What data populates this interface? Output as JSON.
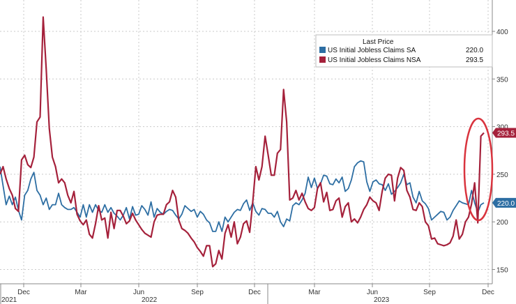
{
  "chart_data": {
    "type": "line",
    "legend": {
      "header": "Last Price",
      "placement": "top-right"
    },
    "y_ticks": [
      150,
      200,
      250,
      300,
      350,
      400
    ],
    "ylim": [
      135,
      430
    ],
    "x_tick_labels": [
      "Dec",
      "Mar",
      "Jun",
      "Sep",
      "Dec",
      "Mar",
      "Jun",
      "Sep",
      "Dec"
    ],
    "year_labels": [
      "2021",
      "2022",
      "2023"
    ],
    "grid": true,
    "colors": {
      "sa": "#2d6ea3",
      "nsa": "#a5213b",
      "highlight_ellipse": "#d9343e"
    },
    "series": [
      {
        "key": "sa",
        "name": "US Initial Jobless Claims SA",
        "last_price": "220.0",
        "values": [
          258,
          238,
          218,
          227,
          218,
          226,
          212,
          202,
          228,
          233,
          245,
          252,
          233,
          228,
          218,
          225,
          213,
          218,
          218,
          230,
          218,
          215,
          213,
          213,
          215,
          210,
          205,
          218,
          205,
          218,
          210,
          218,
          212,
          210,
          218,
          210,
          215,
          209,
          206,
          202,
          207,
          215,
          203,
          216,
          207,
          208,
          217,
          213,
          207,
          221,
          205,
          214,
          210,
          208,
          211,
          213,
          212,
          207,
          203,
          208,
          217,
          214,
          211,
          213,
          205,
          211,
          208,
          202,
          199,
          190,
          190,
          200,
          190,
          205,
          200,
          205,
          210,
          213,
          212,
          219,
          223,
          212,
          220,
          211,
          207,
          214,
          213,
          209,
          209,
          205,
          211,
          200,
          195,
          203,
          201,
          217,
          220,
          218,
          223,
          230,
          247,
          236,
          246,
          235,
          240,
          249,
          248,
          240,
          239,
          245,
          241,
          247,
          232,
          235,
          244,
          258,
          262,
          264,
          263,
          242,
          232,
          242,
          244,
          240,
          239,
          233,
          240,
          229,
          232,
          236,
          241,
          250,
          239,
          241,
          226,
          220,
          232,
          222,
          219,
          214,
          202,
          205,
          208,
          211,
          210,
          202,
          205,
          212,
          217,
          222,
          220,
          219,
          218,
          233,
          220,
          210,
          218,
          220
        ]
      },
      {
        "key": "nsa",
        "name": "US Initial Jobless Claims NSA",
        "last_price": "293.5",
        "values": [
          250,
          258,
          245,
          235,
          228,
          214,
          211,
          265,
          270,
          260,
          257,
          268,
          305,
          310,
          415,
          360,
          298,
          268,
          258,
          241,
          245,
          241,
          228,
          220,
          232,
          208,
          201,
          197,
          202,
          187,
          183,
          198,
          217,
          202,
          204,
          183,
          210,
          193,
          212,
          212,
          206,
          198,
          201,
          209,
          202,
          197,
          192,
          188,
          186,
          184,
          200,
          207,
          208,
          208,
          218,
          221,
          233,
          226,
          202,
          193,
          191,
          188,
          183,
          179,
          173,
          169,
          164,
          175,
          175,
          153,
          156,
          170,
          161,
          188,
          197,
          184,
          200,
          177,
          184,
          198,
          201,
          189,
          221,
          258,
          244,
          258,
          290,
          270,
          249,
          249,
          272,
          276,
          339,
          305,
          223,
          225,
          233,
          223,
          230,
          221,
          214,
          212,
          215,
          235,
          241,
          221,
          231,
          212,
          213,
          222,
          225,
          205,
          216,
          220,
          200,
          203,
          199,
          205,
          213,
          218,
          226,
          222,
          220,
          212,
          232,
          246,
          250,
          249,
          222,
          246,
          257,
          254,
          233,
          226,
          213,
          212,
          220,
          216,
          200,
          196,
          182,
          183,
          177,
          176,
          175,
          176,
          178,
          185,
          202,
          182,
          187,
          200,
          205,
          219,
          241,
          199,
          290,
          293.5
        ]
      }
    ]
  }
}
